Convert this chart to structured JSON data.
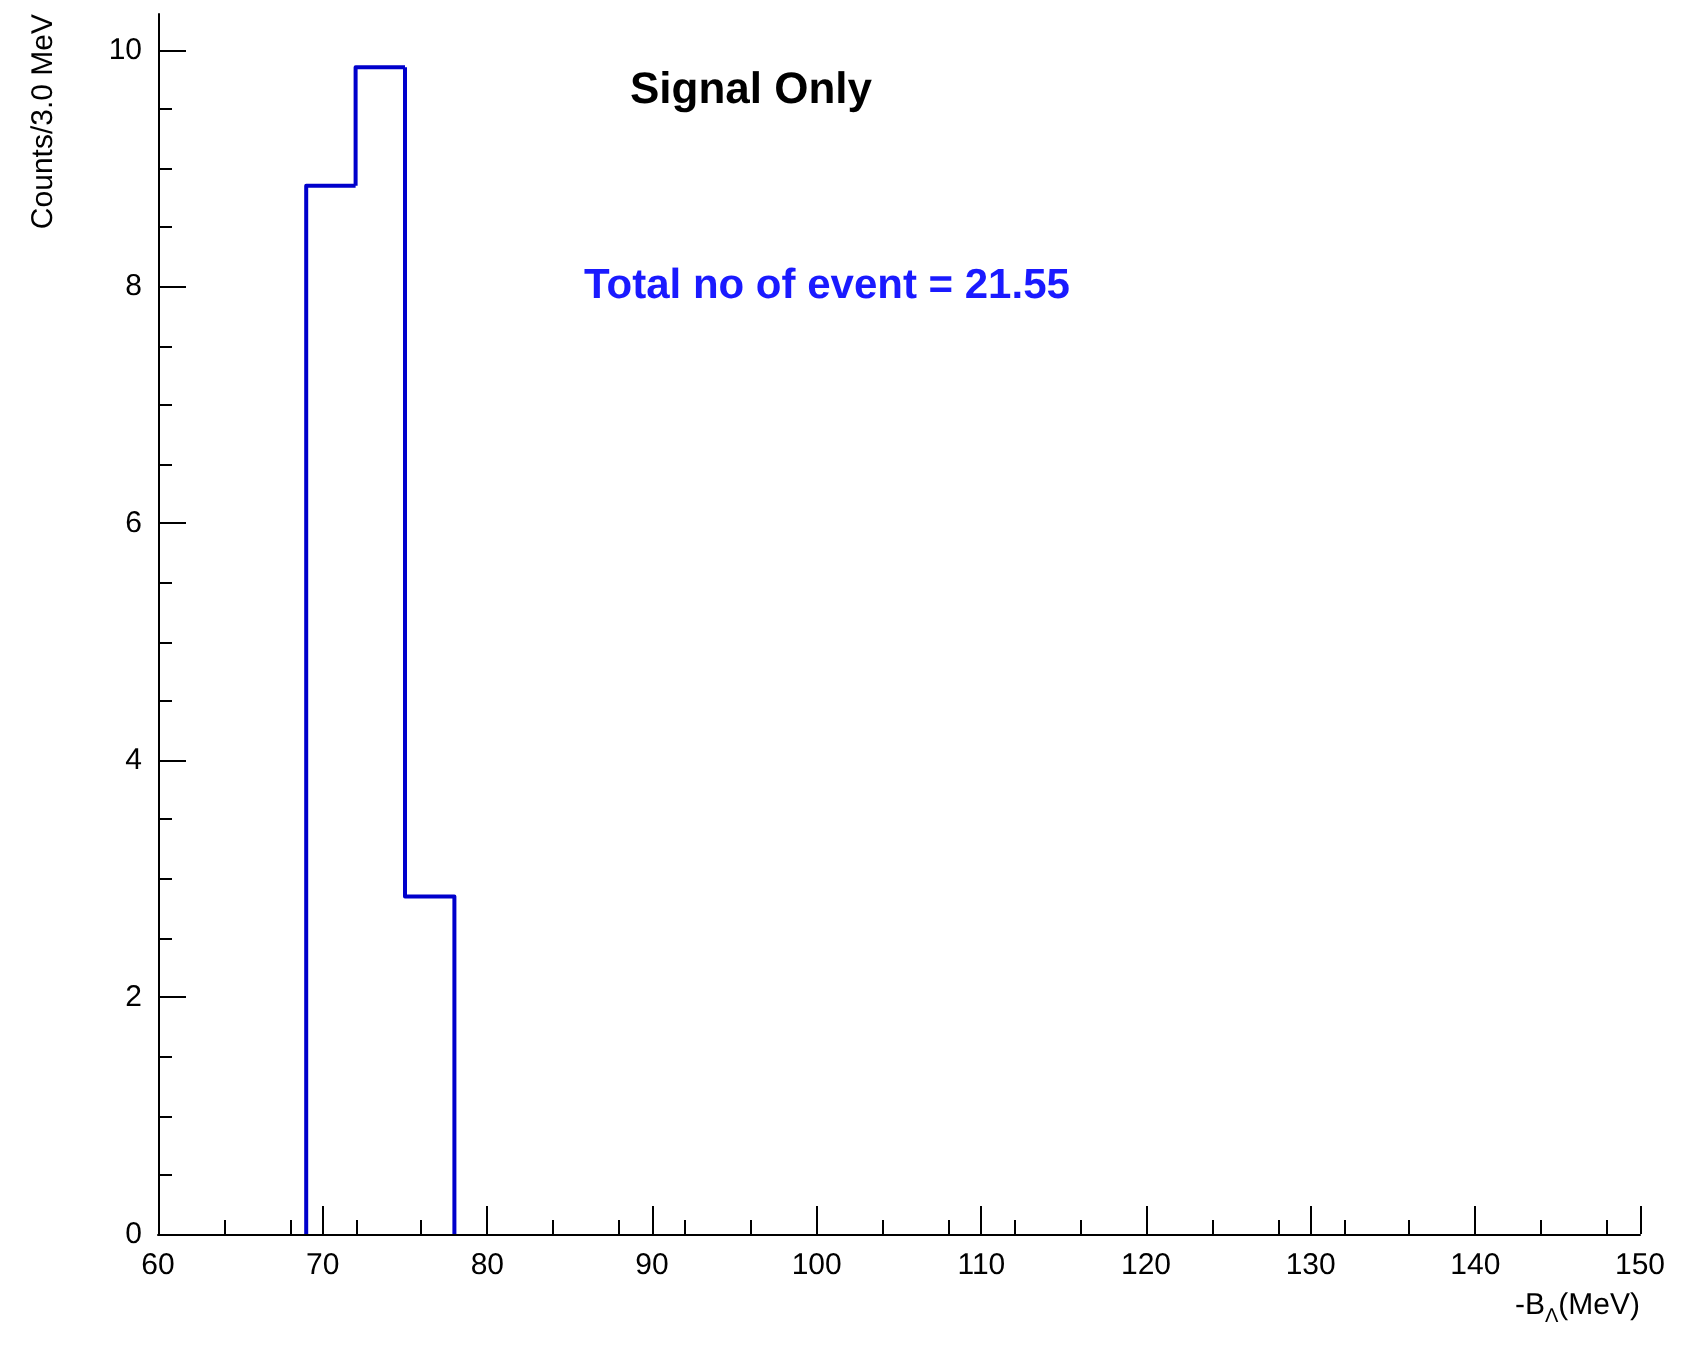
{
  "chart_data": {
    "type": "histogram",
    "title": "Signal Only",
    "xlabel": "-B$_{Λ}$(MeV)",
    "ylabel": "Counts/3.0 MeV",
    "annotations": [
      "Total no of event = 21.55"
    ],
    "bins": [
      69,
      72,
      75,
      78
    ],
    "values": [
      8.85,
      9.85,
      2.85
    ],
    "color": "#0000cc",
    "xlim": [
      60,
      150
    ],
    "xticks": [
      60,
      70,
      80,
      90,
      100,
      110,
      120,
      130,
      140,
      150
    ],
    "ylim": [
      0,
      10.3
    ],
    "yticks": [
      0,
      2,
      4,
      6,
      8,
      10
    ],
    "grid": false
  }
}
